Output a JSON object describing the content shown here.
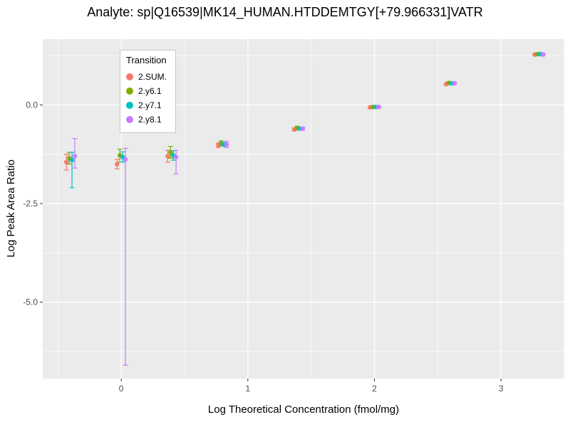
{
  "chart_data": {
    "type": "scatter",
    "title": "Analyte: sp|Q16539|MK14_HUMAN.HTDDEMTGY[+79.966331]VATR",
    "xlabel": "Log Theoretical Concentration (fmol/mg)",
    "ylabel": "Log Peak Area Ratio",
    "xlim": [
      -0.62,
      3.5
    ],
    "ylim": [
      -6.94,
      1.67
    ],
    "x_ticks": [
      0,
      1,
      2,
      3
    ],
    "x_tick_labels": [
      "0",
      "1",
      "2",
      "3"
    ],
    "y_ticks": [
      0,
      -2.5,
      -5
    ],
    "y_tick_labels": [
      "0.0",
      "-2.5",
      "-5.0"
    ],
    "x_minor_ticks": [
      -0.5,
      0.5,
      1.5,
      2.5,
      3.5
    ],
    "y_minor_ticks": [
      1.25,
      -1.25,
      -3.75,
      -6.25
    ],
    "grid": true,
    "legend": {
      "title": "Transition",
      "position": "top-left-inside"
    },
    "colors": {
      "panel_bg": "#EBEBEB",
      "gridline": "#FFFFFF",
      "tick_label": "#4D4D4D",
      "tick_mark": "#333333",
      "axis_title": "#000000",
      "legend_border": "#C8C8C8"
    },
    "dodge_offsets": [
      -0.033,
      -0.011,
      0.011,
      0.033
    ],
    "series": [
      {
        "name": "2.SUM.",
        "color": "#F8766D",
        "points": [
          {
            "x": -0.4,
            "y": -1.45,
            "ylo": -1.65,
            "yhi": -1.25
          },
          {
            "x": 0.0,
            "y": -1.5,
            "ylo": -1.62,
            "yhi": -1.38
          },
          {
            "x": 0.4,
            "y": -1.3,
            "ylo": -1.45,
            "yhi": -1.15
          },
          {
            "x": 0.8,
            "y": -1.02,
            "ylo": -1.08,
            "yhi": -0.96
          },
          {
            "x": 1.4,
            "y": -0.62,
            "ylo": -0.66,
            "yhi": -0.58
          },
          {
            "x": 2.0,
            "y": -0.06,
            "ylo": -0.09,
            "yhi": -0.03
          },
          {
            "x": 2.6,
            "y": 0.53,
            "ylo": 0.5,
            "yhi": 0.56
          },
          {
            "x": 3.3,
            "y": 1.28,
            "ylo": 1.26,
            "yhi": 1.3
          }
        ]
      },
      {
        "name": "2.y6.1",
        "color": "#7CAE00",
        "points": [
          {
            "x": -0.4,
            "y": -1.35,
            "ylo": -1.5,
            "yhi": -1.2
          },
          {
            "x": 0.0,
            "y": -1.28,
            "ylo": -1.45,
            "yhi": -1.12
          },
          {
            "x": 0.4,
            "y": -1.2,
            "ylo": -1.35,
            "yhi": -1.05
          },
          {
            "x": 0.8,
            "y": -0.97,
            "ylo": -1.03,
            "yhi": -0.91
          },
          {
            "x": 1.4,
            "y": -0.58,
            "ylo": -0.62,
            "yhi": -0.54
          },
          {
            "x": 2.0,
            "y": -0.05,
            "ylo": -0.08,
            "yhi": -0.02
          },
          {
            "x": 2.6,
            "y": 0.56,
            "ylo": 0.53,
            "yhi": 0.59
          },
          {
            "x": 3.3,
            "y": 1.29,
            "ylo": 1.27,
            "yhi": 1.31
          }
        ]
      },
      {
        "name": "2.y7.1",
        "color": "#00BFC4",
        "points": [
          {
            "x": -0.4,
            "y": -1.4,
            "ylo": -2.1,
            "yhi": -1.2
          },
          {
            "x": 0.0,
            "y": -1.32,
            "ylo": -1.45,
            "yhi": -1.19
          },
          {
            "x": 0.4,
            "y": -1.28,
            "ylo": -1.4,
            "yhi": -1.16
          },
          {
            "x": 0.8,
            "y": -1.0,
            "ylo": -1.05,
            "yhi": -0.95
          },
          {
            "x": 1.4,
            "y": -0.6,
            "ylo": -0.63,
            "yhi": -0.57
          },
          {
            "x": 2.0,
            "y": -0.05,
            "ylo": -0.07,
            "yhi": -0.03
          },
          {
            "x": 2.6,
            "y": 0.55,
            "ylo": 0.52,
            "yhi": 0.58
          },
          {
            "x": 3.3,
            "y": 1.29,
            "ylo": 1.27,
            "yhi": 1.31
          }
        ]
      },
      {
        "name": "2.y8.1",
        "color": "#C77CFF",
        "points": [
          {
            "x": -0.4,
            "y": -1.3,
            "ylo": -1.6,
            "yhi": -0.85
          },
          {
            "x": 0.0,
            "y": -1.38,
            "ylo": -6.6,
            "yhi": -1.1
          },
          {
            "x": 0.4,
            "y": -1.32,
            "ylo": -1.75,
            "yhi": -1.15
          },
          {
            "x": 0.8,
            "y": -1.0,
            "ylo": -1.08,
            "yhi": -0.92
          },
          {
            "x": 1.4,
            "y": -0.6,
            "ylo": -0.64,
            "yhi": -0.56
          },
          {
            "x": 2.0,
            "y": -0.05,
            "ylo": -0.08,
            "yhi": -0.02
          },
          {
            "x": 2.6,
            "y": 0.55,
            "ylo": 0.52,
            "yhi": 0.58
          },
          {
            "x": 3.3,
            "y": 1.28,
            "ylo": 1.26,
            "yhi": 1.3
          }
        ]
      }
    ]
  }
}
